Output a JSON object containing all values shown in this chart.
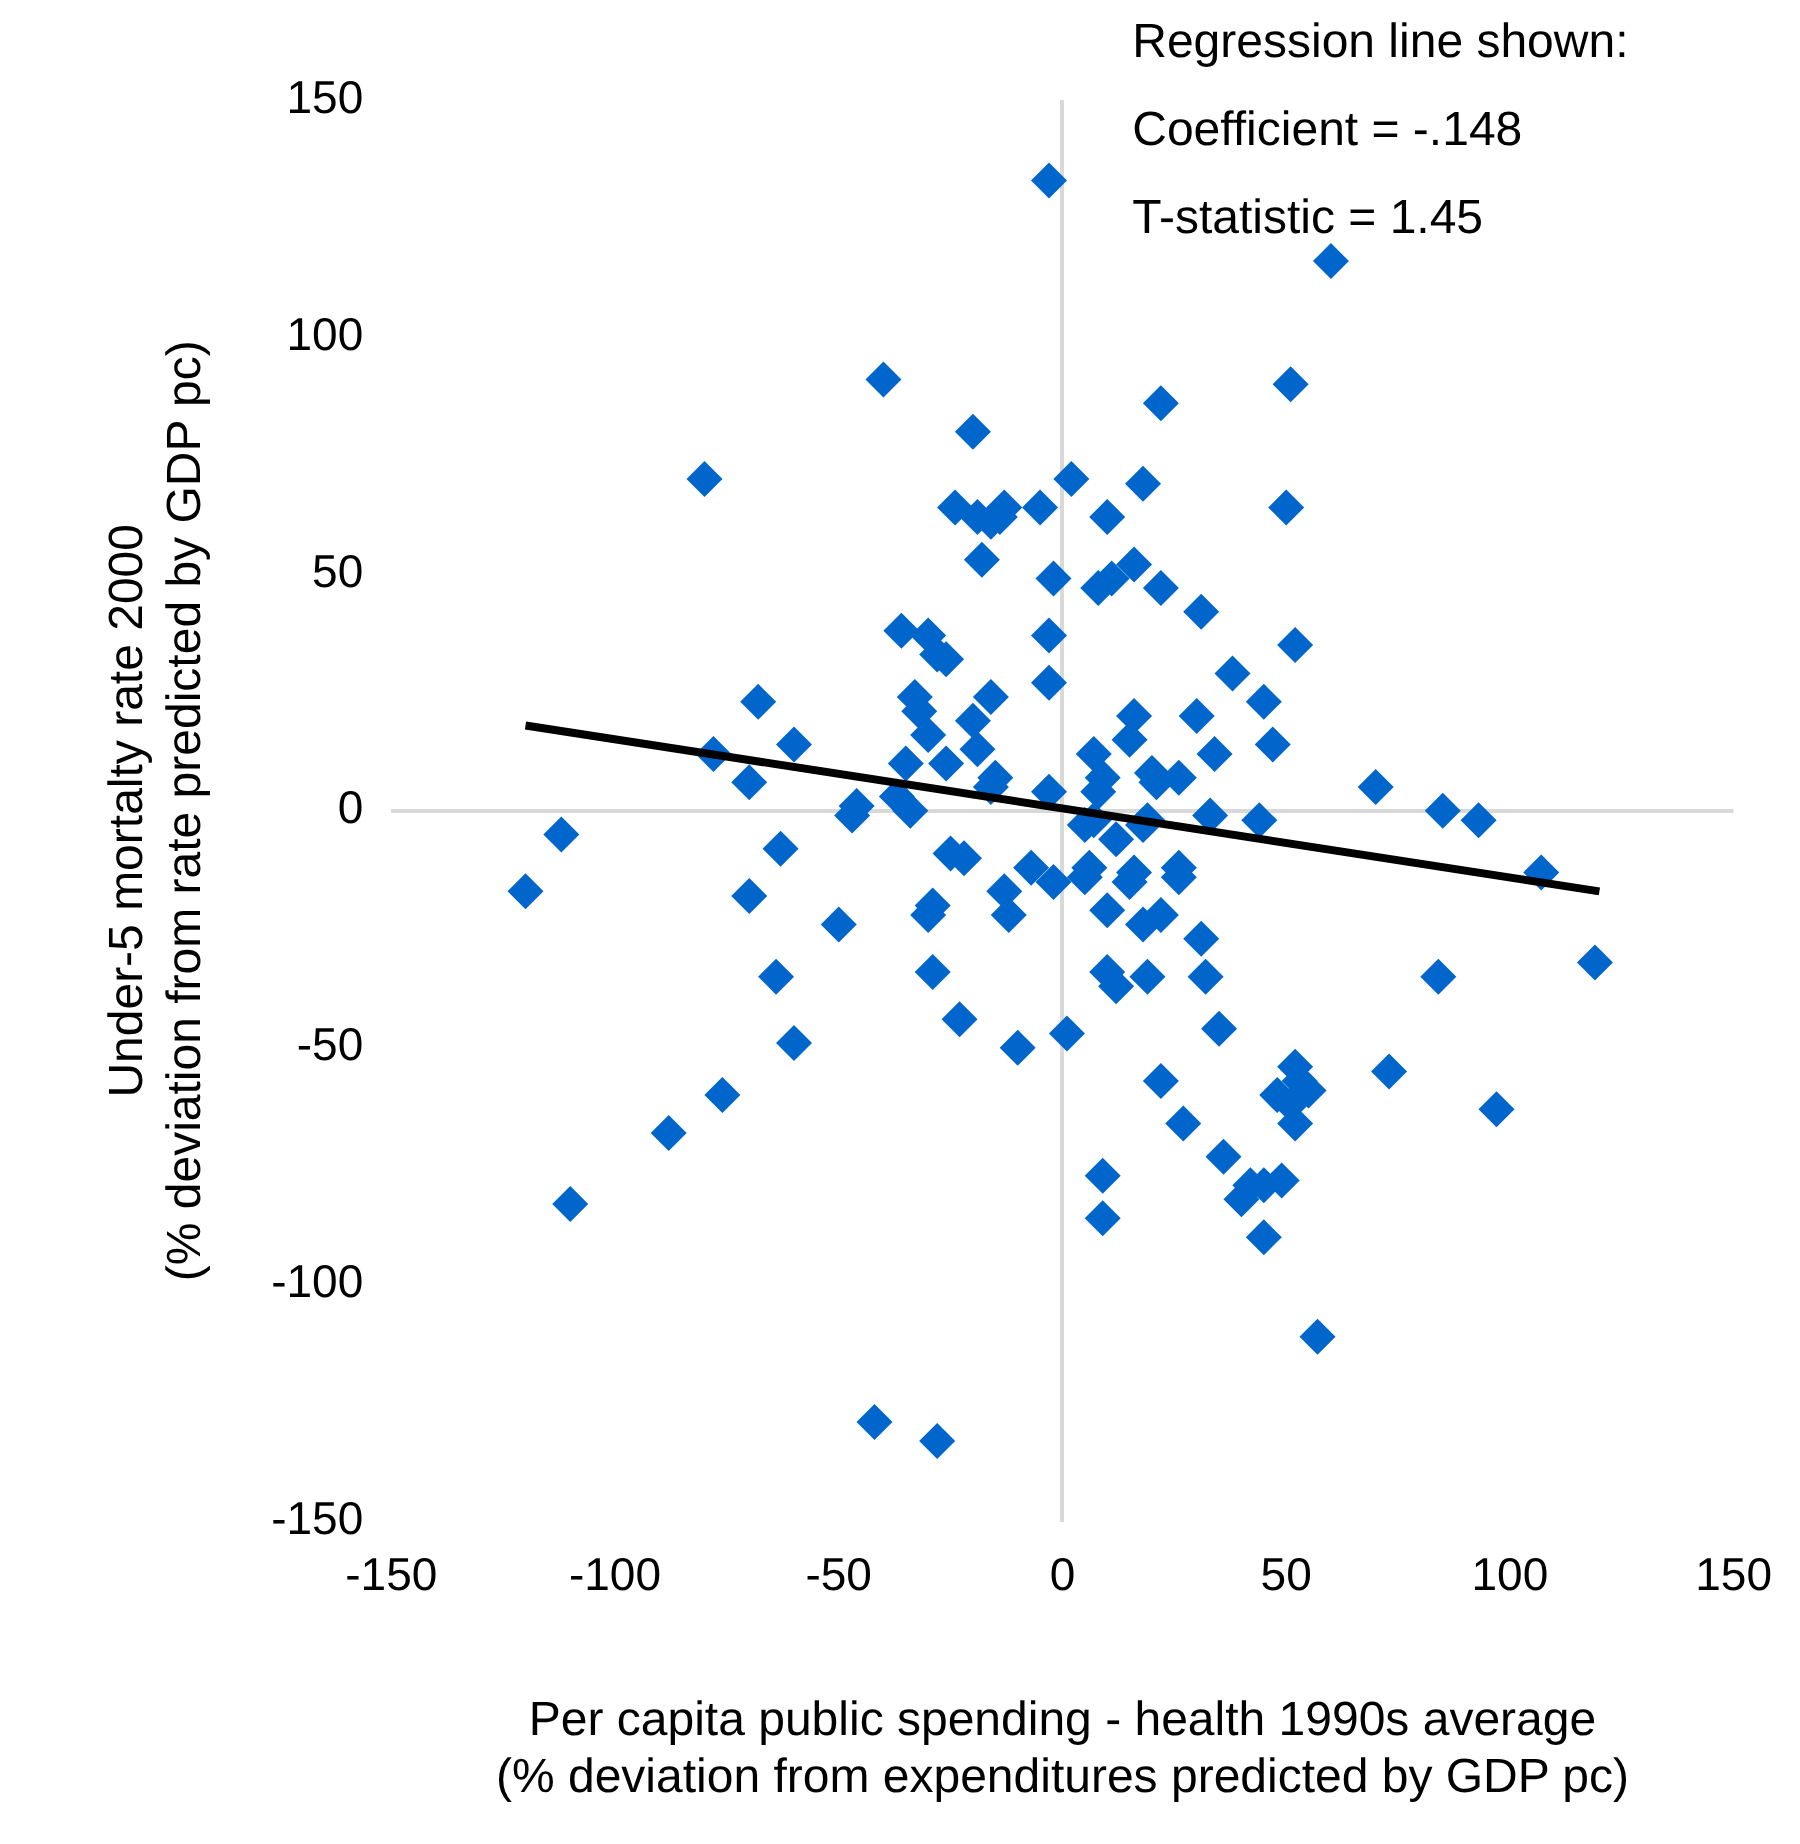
{
  "chart_data": {
    "type": "scatter",
    "xlabel": "Per capita public spending - health 1990s average\n(% deviation from expenditures predicted by GDP pc)",
    "ylabel": "Under-5 mortalty rate 2000\n(% deviation from rate predicted by GDP pc)",
    "annotations": [
      "Regression line shown:",
      "Coefficient = -.148",
      "T-statistic = 1.45"
    ],
    "xlim": [
      -150,
      150
    ],
    "xticks": [
      -150,
      -100,
      -50,
      0,
      50,
      100,
      150
    ],
    "ylim": [
      -150,
      150
    ],
    "yticks": [
      -150,
      -100,
      -50,
      0,
      50,
      100,
      150
    ],
    "legend": false,
    "series": [
      {
        "marker": "diamond",
        "color": "#0066cc",
        "x": [
          -3,
          60,
          51,
          -40,
          22,
          -20,
          -80,
          2,
          18,
          -24,
          -13,
          -5,
          50,
          -16,
          -19,
          -14,
          10,
          -18,
          16,
          11,
          -2,
          8,
          22,
          31,
          52,
          -36,
          -30,
          -28,
          -26,
          -3,
          -3,
          38,
          -16,
          -68,
          -33,
          -32,
          16,
          30,
          -20,
          45,
          -78,
          -60,
          15,
          -19,
          -35,
          -30,
          7,
          47,
          34,
          -26,
          -70,
          -15,
          -16,
          -3,
          70,
          20,
          21,
          26,
          8,
          9,
          -34,
          -46,
          -37,
          -47,
          33,
          7,
          19,
          44,
          85,
          93,
          18,
          12,
          5,
          -112,
          -120,
          -63,
          -70,
          -22,
          -25,
          6,
          5,
          -7,
          26,
          26,
          16,
          15,
          -13,
          -2,
          -12,
          10,
          22,
          107,
          119,
          -50,
          18,
          31,
          -29,
          -30,
          10,
          12,
          19,
          32,
          -29,
          -64,
          84,
          35,
          -23,
          1,
          -10,
          -60,
          52,
          73,
          53,
          55,
          48,
          51,
          52,
          22,
          27,
          -76,
          -88,
          97,
          36,
          40,
          42,
          49,
          45,
          9,
          9,
          45,
          -110,
          57,
          -42,
          -28
        ],
        "values": [
          133,
          116,
          90,
          91,
          86,
          80,
          70,
          70,
          69,
          64,
          64,
          64,
          64,
          61,
          62,
          62,
          62,
          53,
          52,
          49,
          49,
          47,
          47,
          42,
          35,
          38,
          37,
          33,
          32,
          37,
          27,
          29,
          24,
          23,
          24,
          21,
          20,
          20,
          19,
          23,
          12,
          14,
          15,
          13,
          10,
          16,
          12,
          14,
          12,
          10,
          6,
          7,
          5,
          4,
          5,
          8,
          6,
          7,
          4,
          7,
          0,
          1,
          3,
          -1,
          -1,
          -2,
          -2,
          -2,
          0,
          -2,
          -3,
          -6,
          -3,
          -5,
          -17,
          -8,
          -18,
          -10,
          -9,
          -12,
          -14,
          -12,
          -12,
          -14,
          -13,
          -15,
          -17,
          -15,
          -22,
          -21,
          -22,
          -13,
          -32,
          -24,
          -24,
          -27,
          -20,
          -22,
          -34,
          -37,
          -35,
          -35,
          -34,
          -35,
          -35,
          -46,
          -44,
          -47,
          -50,
          -49,
          -54,
          -55,
          -57,
          -59,
          -60,
          -62,
          -66,
          -57,
          -66,
          -60,
          -68,
          -63,
          -73,
          -82,
          -79,
          -78,
          -79,
          -77,
          -86,
          -90,
          -83,
          -111,
          -129,
          -133
        ]
      },
      {
        "type": "line",
        "marker": "none",
        "color": "#000000",
        "x": [
          -120,
          120
        ],
        "values": [
          18,
          -17
        ]
      }
    ]
  }
}
